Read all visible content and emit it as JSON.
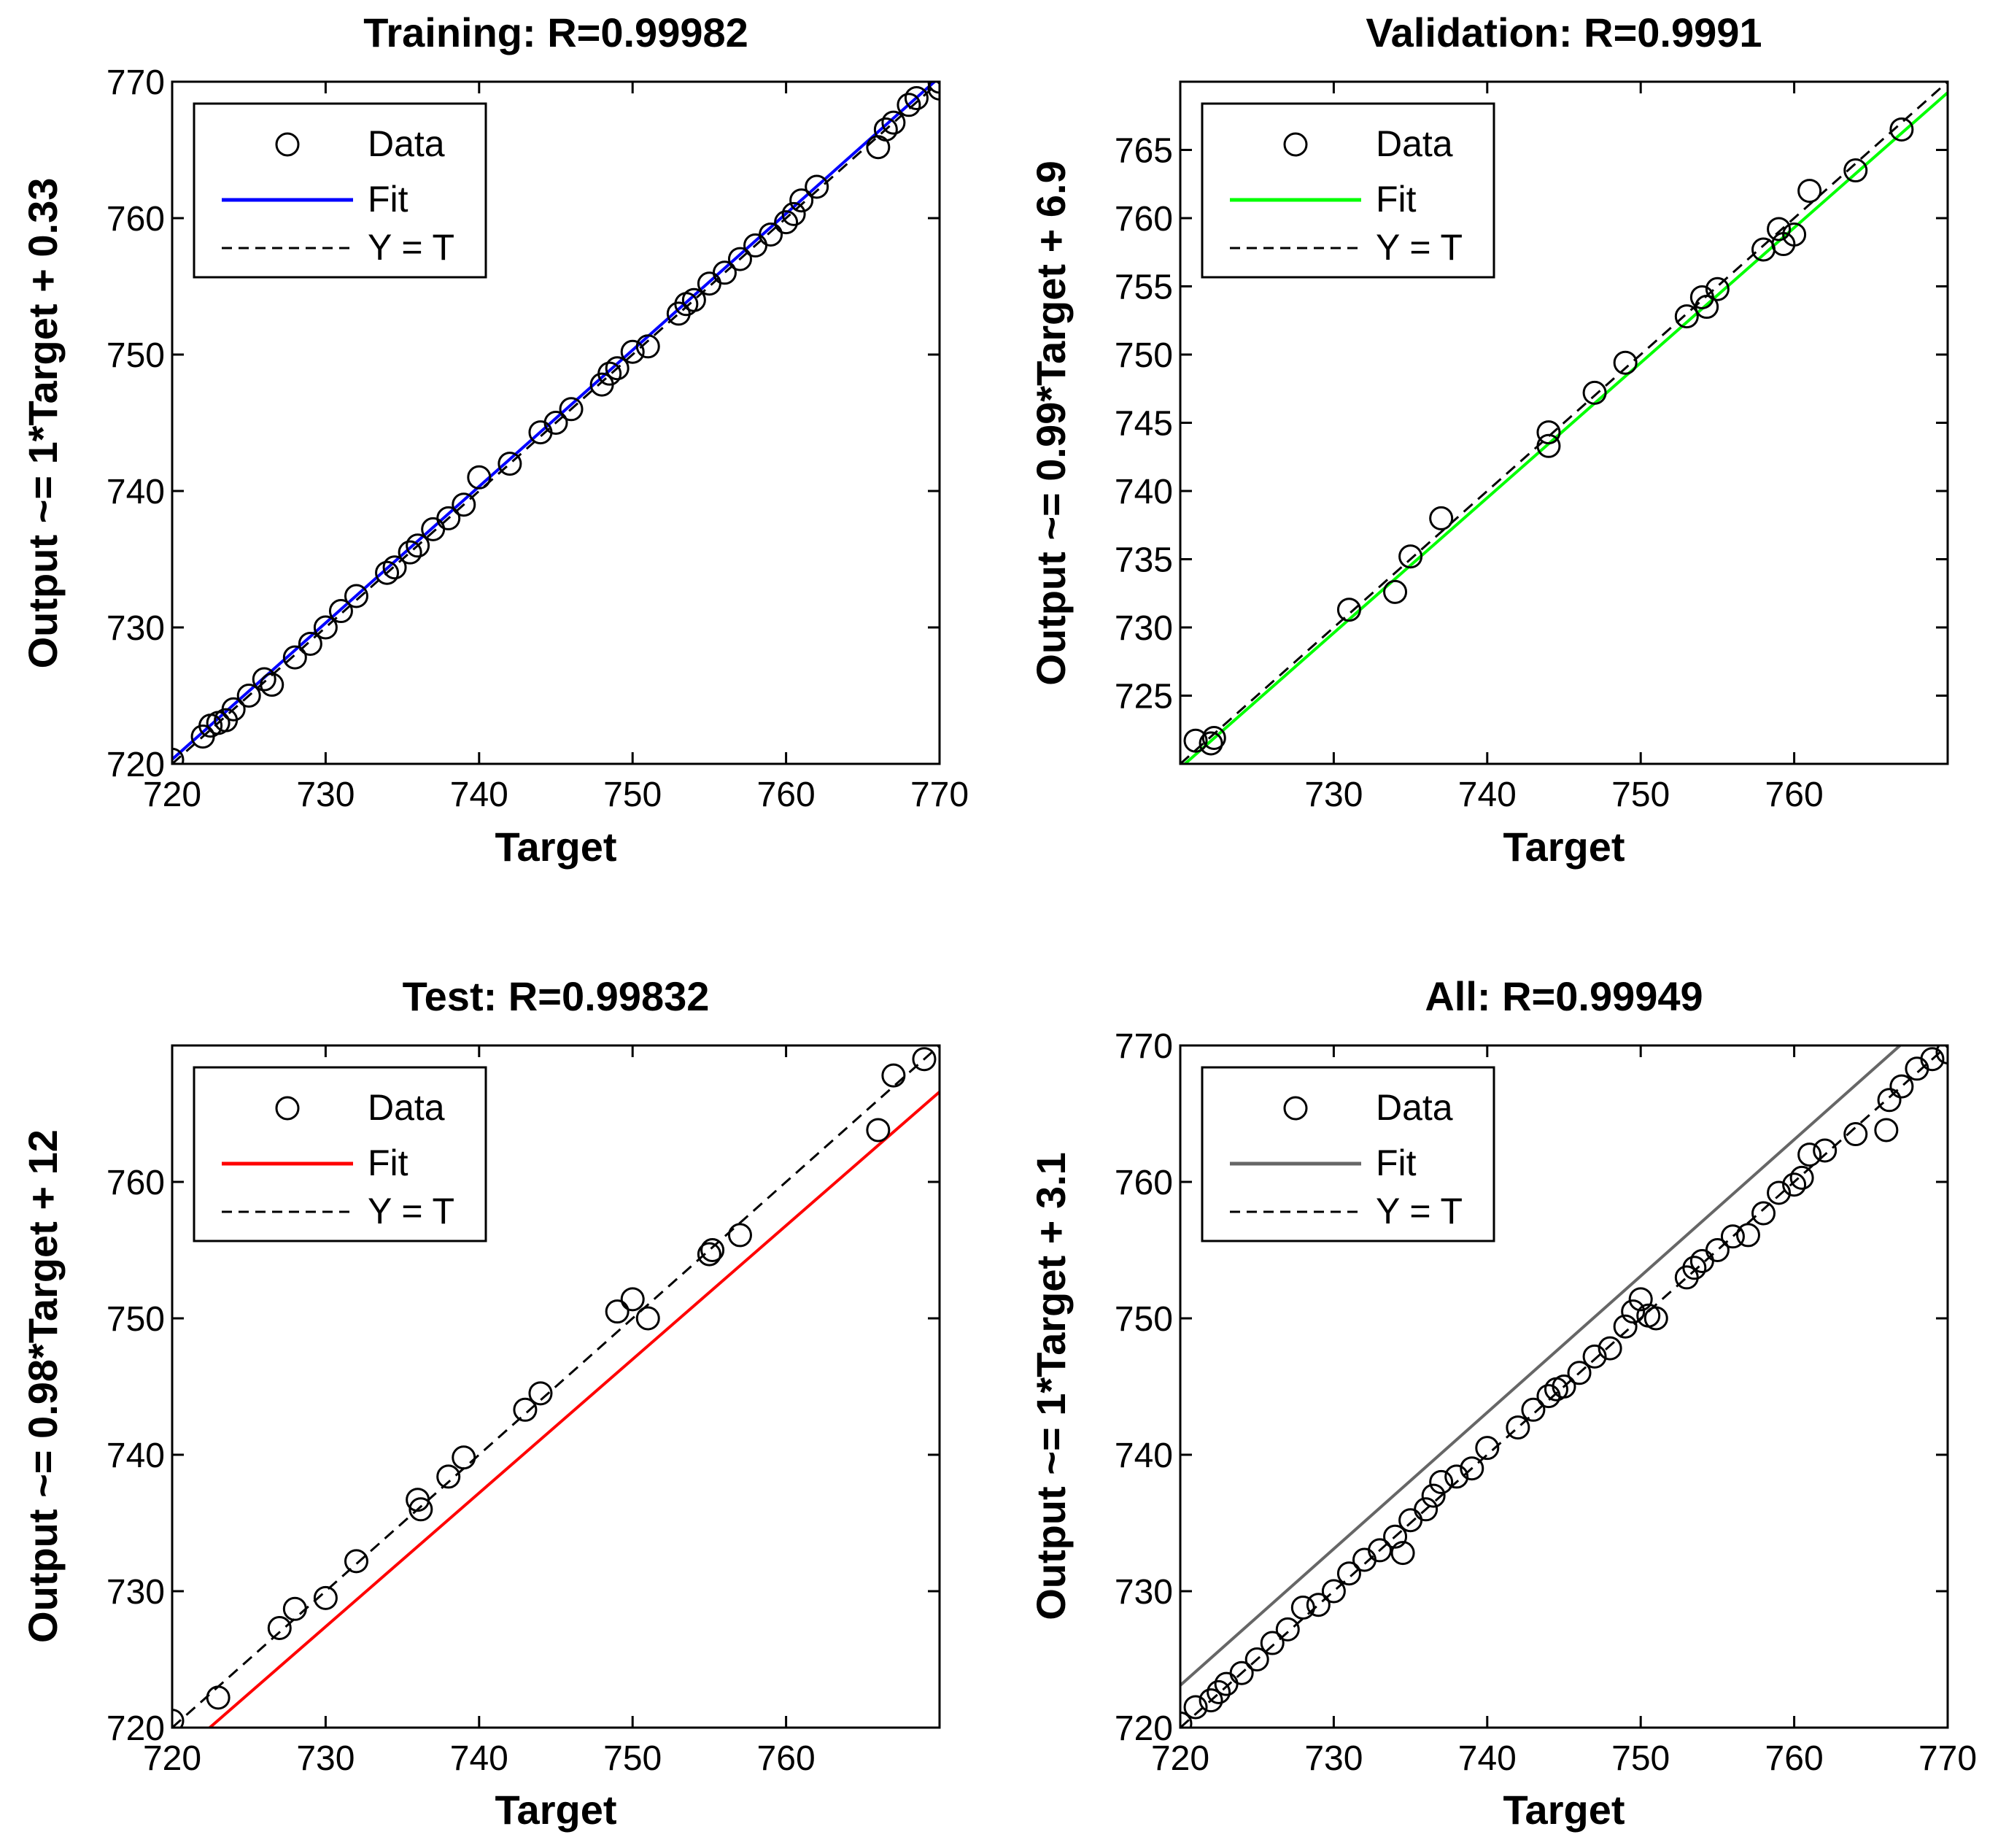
{
  "chart_data": [
    {
      "type": "scatter",
      "title": "Training: R=0.99982",
      "xlabel": "Target",
      "ylabel": "Output ~= 1*Target + 0.33",
      "xlim": [
        720,
        770
      ],
      "ylim": [
        720,
        770
      ],
      "xticks": [
        720,
        730,
        740,
        750,
        760,
        770
      ],
      "yticks": [
        720,
        730,
        740,
        750,
        760,
        770
      ],
      "fit": {
        "slope": 1.0,
        "intercept": 0.33,
        "color": "#0000ff"
      },
      "legend": {
        "data": "Data",
        "fit": "Fit",
        "identity": "Y = T",
        "placement": "top-left"
      },
      "x": [
        720,
        722,
        722.5,
        723,
        723.5,
        724,
        725,
        726,
        726.5,
        728,
        729,
        730,
        731,
        732,
        734,
        734.5,
        735.5,
        736,
        737,
        738,
        739,
        740,
        742,
        744,
        745,
        746,
        748,
        748.5,
        749,
        750,
        751,
        753,
        753.5,
        754,
        755,
        756,
        757,
        758,
        759,
        760,
        760.5,
        761,
        762,
        766,
        766.5,
        767,
        768,
        768.5,
        770,
        770
      ],
      "y": [
        720.3,
        722,
        722.8,
        723,
        723.2,
        724,
        725,
        726.2,
        725.8,
        727.8,
        728.8,
        730,
        731.2,
        732.3,
        734,
        734.4,
        735.5,
        736,
        737.2,
        738,
        739,
        741,
        742,
        744.3,
        745,
        746,
        747.8,
        748.6,
        749,
        750.2,
        750.6,
        753,
        753.7,
        754,
        755.2,
        756,
        757,
        758,
        758.8,
        759.7,
        760.3,
        761.3,
        762.3,
        765.2,
        766.5,
        767,
        768.3,
        768.8,
        769.5,
        770
      ]
    },
    {
      "type": "scatter",
      "title": "Validation: R=0.9991",
      "xlabel": "Target",
      "ylabel": "Output ~= 0.99*Target + 6.9",
      "xlim": [
        720,
        770
      ],
      "ylim": [
        720,
        770
      ],
      "xticks": [
        730,
        740,
        750,
        760
      ],
      "yticks": [
        725,
        730,
        735,
        740,
        745,
        750,
        755,
        760,
        765
      ],
      "fit": {
        "slope": 0.99,
        "intercept": 6.9,
        "color": "#00ff00"
      },
      "legend": {
        "data": "Data",
        "fit": "Fit",
        "identity": "Y = T",
        "placement": "top-left"
      },
      "x": [
        721,
        722,
        722.2,
        731,
        734,
        735,
        737,
        744,
        744,
        747,
        749,
        753,
        754,
        754.3,
        755,
        758,
        759,
        759.3,
        760,
        761,
        764,
        767
      ],
      "y": [
        721.7,
        721.5,
        721.9,
        731.3,
        732.6,
        735.2,
        738,
        744.3,
        743.3,
        747.2,
        749.4,
        752.8,
        754.2,
        753.5,
        754.8,
        757.7,
        759.2,
        758.1,
        758.8,
        762,
        763.5,
        766.5
      ]
    },
    {
      "type": "scatter",
      "title": "Test: R=0.99832",
      "xlabel": "Target",
      "ylabel": "Output ~= 0.98*Target + 12",
      "xlim": [
        720,
        770
      ],
      "ylim": [
        720,
        770
      ],
      "xticks": [
        720,
        730,
        740,
        750,
        760
      ],
      "yticks": [
        720,
        730,
        740,
        750,
        760
      ],
      "fit": {
        "slope": 0.98,
        "intercept": 12,
        "color": "#ff0000"
      },
      "legend": {
        "data": "Data",
        "fit": "Fit",
        "identity": "Y = T",
        "placement": "top-left"
      },
      "x": [
        720,
        723,
        727,
        728,
        730,
        732,
        736,
        736.2,
        738,
        739,
        743,
        744,
        749,
        750,
        751,
        755,
        755.2,
        757,
        766,
        767,
        769
      ],
      "y": [
        720.5,
        722.2,
        727.3,
        728.7,
        729.5,
        732.2,
        736.7,
        736,
        738.4,
        739.8,
        743.3,
        744.5,
        750.5,
        751.4,
        750,
        754.7,
        755,
        756.1,
        763.8,
        767.8,
        769
      ]
    },
    {
      "type": "scatter",
      "title": "All: R=0.99949",
      "xlabel": "Target",
      "ylabel": "Output ~= 1*Target + 3.1",
      "xlim": [
        720,
        770
      ],
      "ylim": [
        720,
        770
      ],
      "xticks": [
        720,
        730,
        740,
        750,
        760,
        770
      ],
      "yticks": [
        720,
        730,
        740,
        750,
        760,
        770
      ],
      "fit": {
        "slope": 1.0,
        "intercept": 3.1,
        "color": "#666666"
      },
      "legend": {
        "data": "Data",
        "fit": "Fit",
        "identity": "Y = T",
        "placement": "top-left"
      },
      "x": [
        720,
        721,
        722,
        722.5,
        723,
        724,
        725,
        726,
        727,
        728,
        729,
        730,
        731,
        732,
        733,
        734,
        734.5,
        735,
        736,
        736.5,
        737,
        738,
        739,
        740,
        742,
        743,
        744,
        744.5,
        745,
        746,
        747,
        748,
        749,
        749.5,
        750,
        750.5,
        751,
        753,
        753.5,
        754,
        755,
        756,
        757,
        758,
        759,
        760,
        760.5,
        761,
        762,
        764,
        766,
        766.2,
        767,
        768,
        769,
        770
      ],
      "y": [
        720.3,
        721.5,
        722,
        722.6,
        723.2,
        724,
        725,
        726.2,
        727.2,
        728.8,
        729,
        730,
        731.3,
        732.3,
        733,
        734,
        732.8,
        735.2,
        736,
        737,
        738,
        738.4,
        739,
        740.5,
        742,
        743.3,
        744.3,
        744.8,
        745,
        746,
        747.2,
        747.8,
        749.4,
        750.5,
        751.4,
        750.2,
        750,
        753,
        753.7,
        754.2,
        755,
        756,
        756.1,
        757.7,
        759.2,
        759.8,
        760.3,
        762,
        762.3,
        763.5,
        763.8,
        766,
        767,
        768.3,
        769,
        769.5
      ]
    }
  ]
}
